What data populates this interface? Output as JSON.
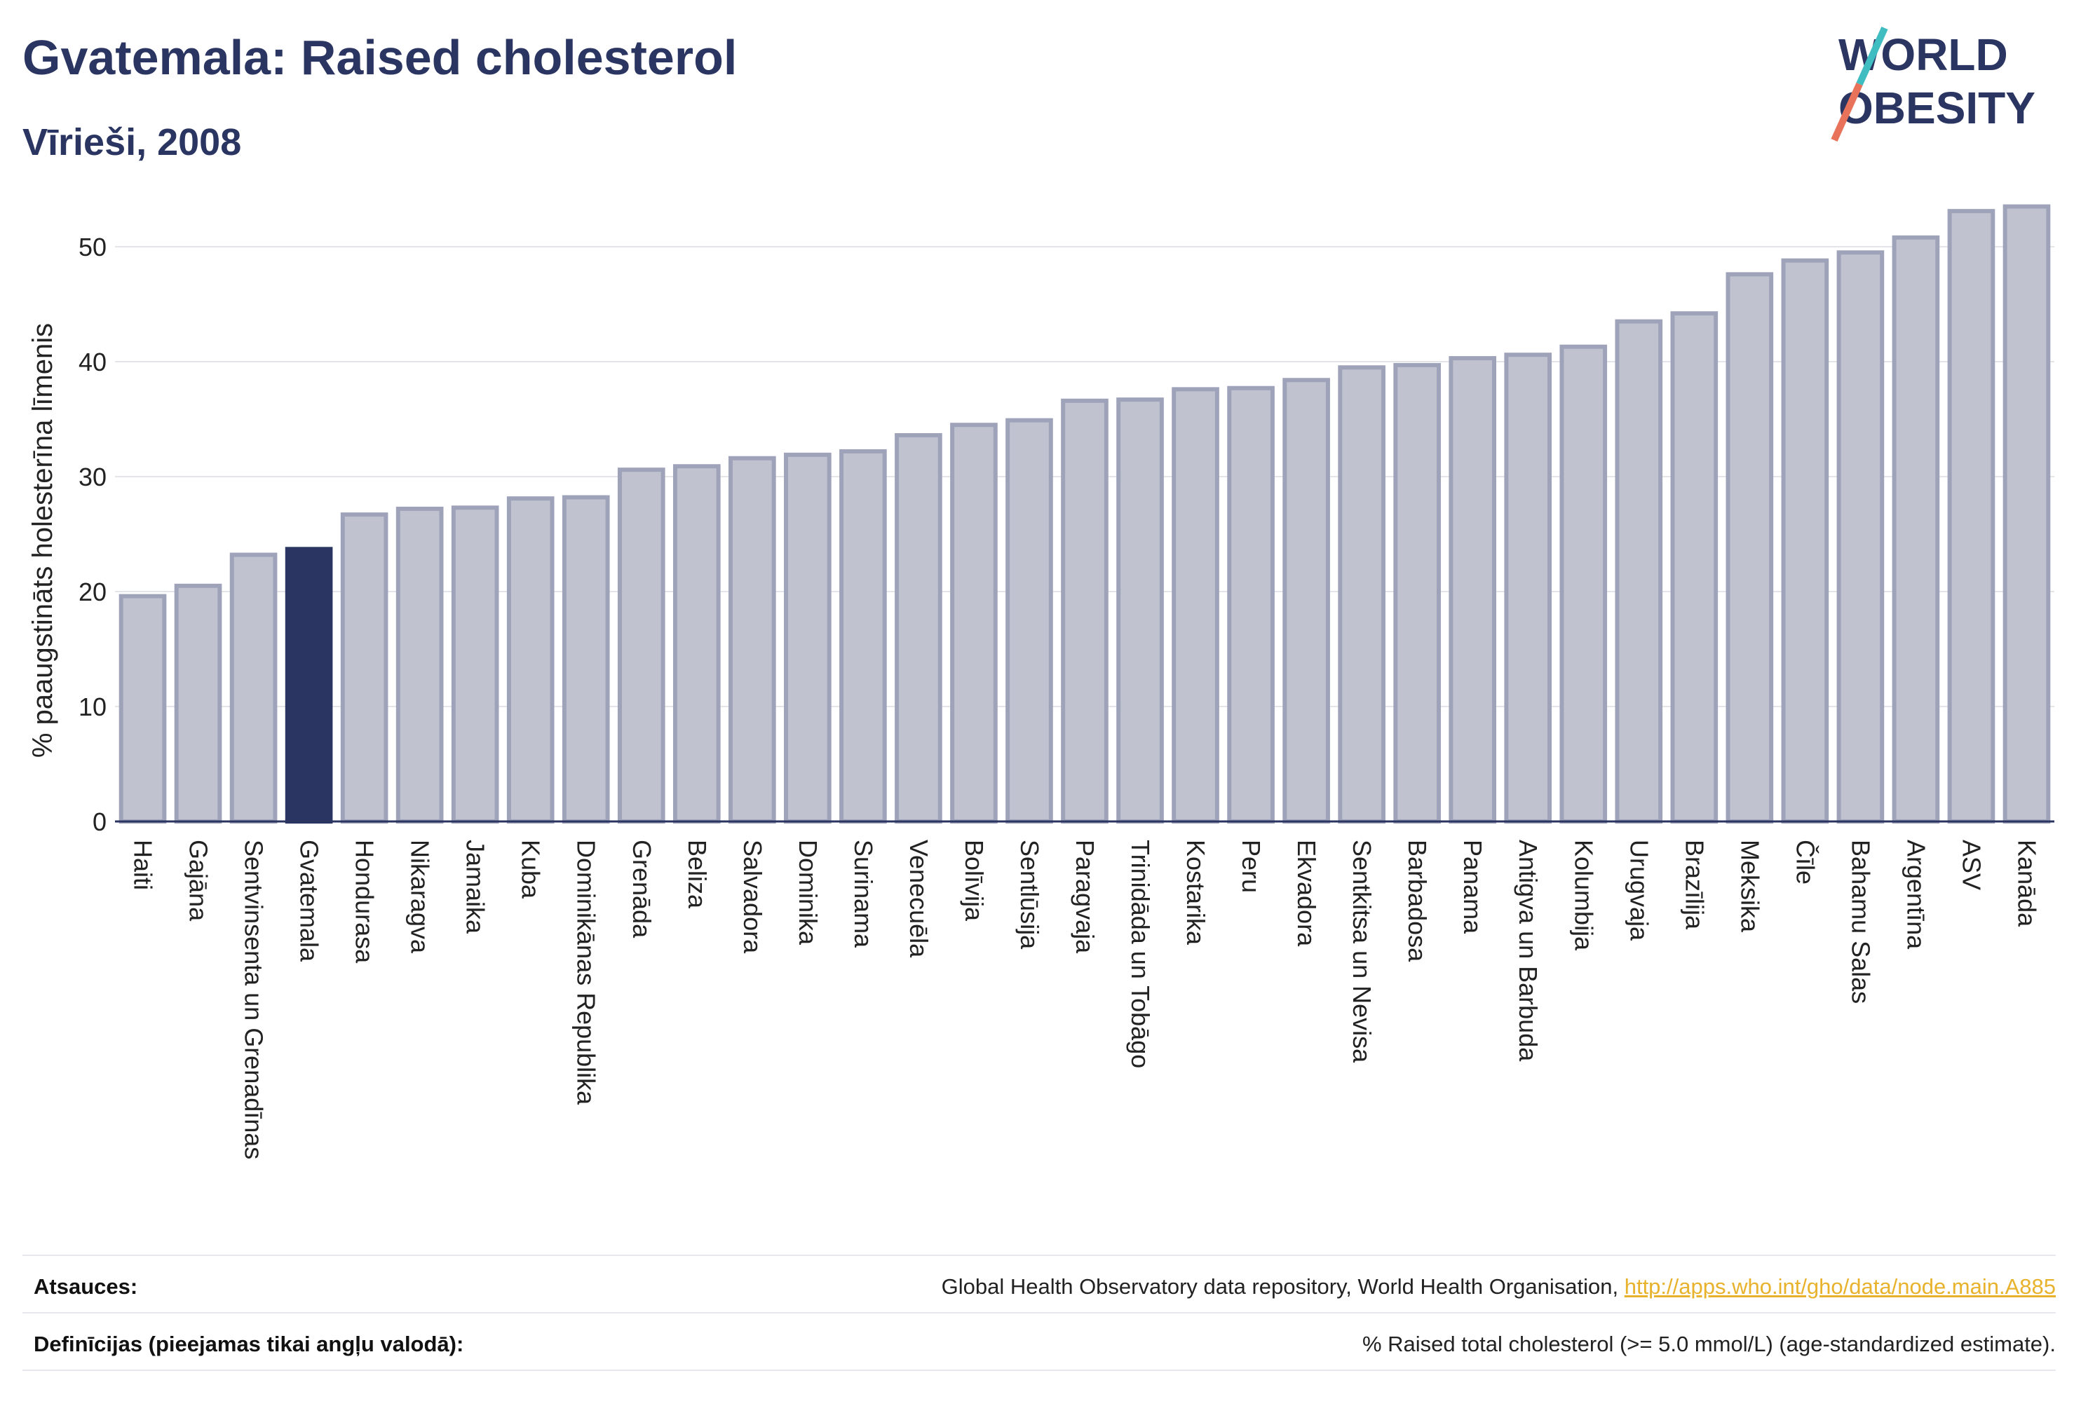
{
  "header": {
    "title": "Gvatemala: Raised cholesterol",
    "subtitle": "Vīrieši, 2008"
  },
  "logo": {
    "line1": "WORLD",
    "line2": "OBESITY"
  },
  "chart_data": {
    "type": "bar",
    "ylabel": "% paaugstināts holesterīna līmenis",
    "ylim": [
      0,
      55
    ],
    "yticks": [
      0,
      10,
      20,
      30,
      40,
      50
    ],
    "grid": true,
    "highlight": "Gvatemala",
    "colors": {
      "bar": "#c0c3cf",
      "bar_border": "#9fa3ba",
      "highlight": "#2b3561",
      "grid": "#e3e5ea",
      "axis": "#2b3561"
    },
    "categories": [
      "Haiti",
      "Gajāna",
      "Sentvinsenta un Grenadīnas",
      "Gvatemala",
      "Hondurasa",
      "Nikaragva",
      "Jamaika",
      "Kuba",
      "Dominikānas Republika",
      "Grenāda",
      "Beliza",
      "Salvadora",
      "Dominika",
      "Surinama",
      "Venecuēla",
      "Bolīvija",
      "Sentlūsija",
      "Paragvaja",
      "Trinidāda un Tobāgo",
      "Kostarika",
      "Peru",
      "Ekvadora",
      "Sentkitsa un Nevisa",
      "Barbadosa",
      "Panama",
      "Antigva un Barbuda",
      "Kolumbija",
      "Urugvaja",
      "Brazīlija",
      "Meksika",
      "Čīle",
      "Bahamu Salas",
      "Argentīna",
      "ASV",
      "Kanāda"
    ],
    "values": [
      19.6,
      20.5,
      23.2,
      23.7,
      26.7,
      27.2,
      27.3,
      28.1,
      28.2,
      30.6,
      30.9,
      31.6,
      31.9,
      32.2,
      33.6,
      34.5,
      34.9,
      36.6,
      36.7,
      37.6,
      37.7,
      38.4,
      39.5,
      39.7,
      40.3,
      40.6,
      41.3,
      43.5,
      44.2,
      47.6,
      48.8,
      49.5,
      50.8,
      53.1,
      53.5
    ]
  },
  "footer": {
    "sources_label": "Atsauces:",
    "sources_text": "Global Health Observatory data repository, World Health Organisation, ",
    "sources_link": "http://apps.who.int/gho/data/node.main.A885",
    "definitions_label": "Definīcijas (pieejamas tikai angļu valodā):",
    "definitions_text": "% Raised total cholesterol (>= 5.0 mmol/L) (age-standardized estimate)."
  }
}
